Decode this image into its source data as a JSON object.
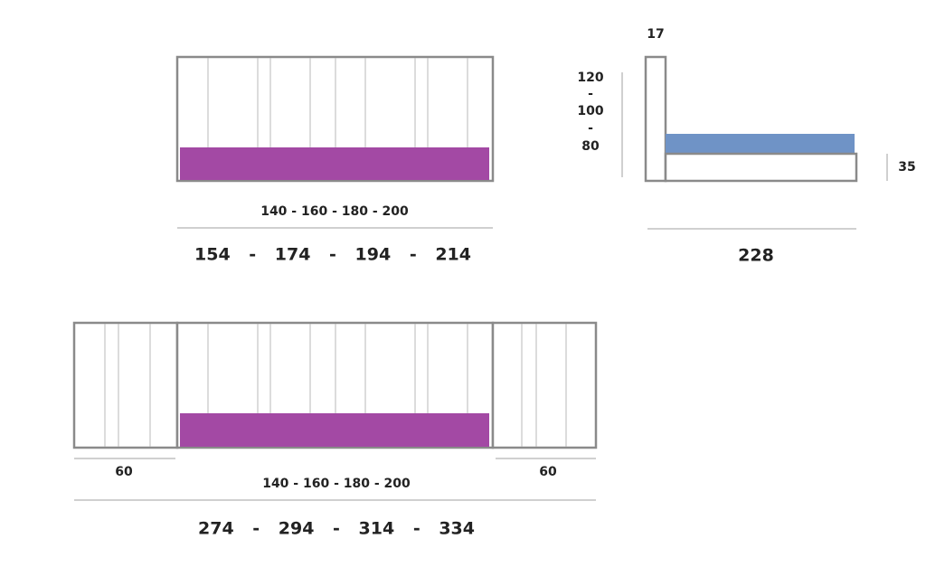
{
  "front_view": {
    "inner_width": "140 - 160 - 180 - 200",
    "outer_width": "154 - 174 - 194 - 214"
  },
  "side_view": {
    "headboard_depth": "17",
    "heights": [
      "120",
      "-",
      "100",
      "-",
      "80"
    ],
    "base_height": "35",
    "length": "228"
  },
  "with_nightstands": {
    "left_width": "60",
    "right_width": "60",
    "inner_width": "140 - 160 - 180 - 200",
    "outer_width": "274 - 294 - 314 - 334"
  }
}
